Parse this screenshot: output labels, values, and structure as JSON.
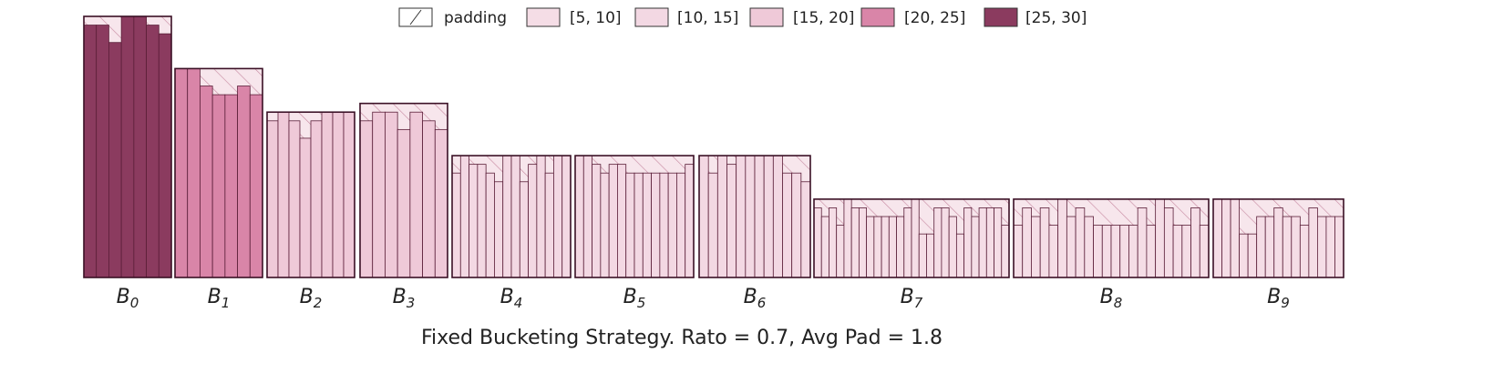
{
  "chart_data": {
    "type": "bar",
    "title": "Fixed Bucketing Strategy. Rato = 0.7, Avg Pad = 1.8",
    "legend": {
      "position": "top-center",
      "entries": [
        {
          "key": "padding",
          "label": "padding",
          "color": "#f7e6ec",
          "hatched": true
        },
        {
          "key": "5-10",
          "label": "[5, 10]",
          "color": "#f5dde6",
          "min": 5,
          "max": 10
        },
        {
          "key": "10-15",
          "label": "[10, 15]",
          "color": "#f3d8e3",
          "min": 10,
          "max": 15
        },
        {
          "key": "15-20",
          "label": "[15, 20]",
          "color": "#efc9d8",
          "min": 15,
          "max": 20
        },
        {
          "key": "20-25",
          "label": "[20, 25]",
          "color": "#d985a8",
          "min": 20,
          "max": 25
        },
        {
          "key": "25-30",
          "label": "[25, 30]",
          "color": "#8b3b5f",
          "min": 25,
          "max": 30
        }
      ]
    },
    "ylim": [
      0,
      30
    ],
    "buckets": [
      {
        "name": "B",
        "sub": "0",
        "capacity": 30,
        "lengths": [
          29,
          29,
          27,
          30,
          30,
          29,
          28
        ]
      },
      {
        "name": "B",
        "sub": "1",
        "capacity": 24,
        "lengths": [
          24,
          24,
          22,
          21,
          21,
          22,
          21
        ]
      },
      {
        "name": "B",
        "sub": "2",
        "capacity": 19,
        "lengths": [
          18,
          19,
          18,
          16,
          18,
          19,
          19,
          19
        ]
      },
      {
        "name": "B",
        "sub": "3",
        "capacity": 20,
        "lengths": [
          18,
          19,
          19,
          17,
          19,
          18,
          17
        ]
      },
      {
        "name": "B",
        "sub": "4",
        "capacity": 14,
        "lengths": [
          12,
          14,
          13,
          13,
          12,
          11,
          14,
          14,
          11,
          13,
          14,
          12,
          14,
          14
        ]
      },
      {
        "name": "B",
        "sub": "5",
        "capacity": 14,
        "lengths": [
          14,
          14,
          13,
          12,
          13,
          13,
          12,
          12,
          12,
          12,
          12,
          12,
          12,
          13
        ]
      },
      {
        "name": "B",
        "sub": "6",
        "capacity": 14,
        "lengths": [
          14,
          12,
          14,
          13,
          14,
          14,
          14,
          14,
          14,
          12,
          12,
          11
        ]
      },
      {
        "name": "B",
        "sub": "7",
        "capacity": 9,
        "lengths": [
          8,
          7,
          8,
          6,
          9,
          8,
          8,
          7,
          7,
          7,
          7,
          7,
          8,
          9,
          5,
          5,
          8,
          8,
          7,
          5,
          8,
          7,
          8,
          8,
          8,
          6
        ]
      },
      {
        "name": "B",
        "sub": "8",
        "capacity": 9,
        "lengths": [
          6,
          8,
          7,
          8,
          6,
          9,
          7,
          8,
          7,
          6,
          6,
          6,
          6,
          6,
          8,
          6,
          9,
          8,
          6,
          6,
          8,
          6
        ]
      },
      {
        "name": "B",
        "sub": "9",
        "capacity": 9,
        "lengths": [
          9,
          9,
          9,
          5,
          5,
          7,
          7,
          8,
          7,
          7,
          6,
          8,
          7,
          7,
          7
        ]
      }
    ]
  }
}
